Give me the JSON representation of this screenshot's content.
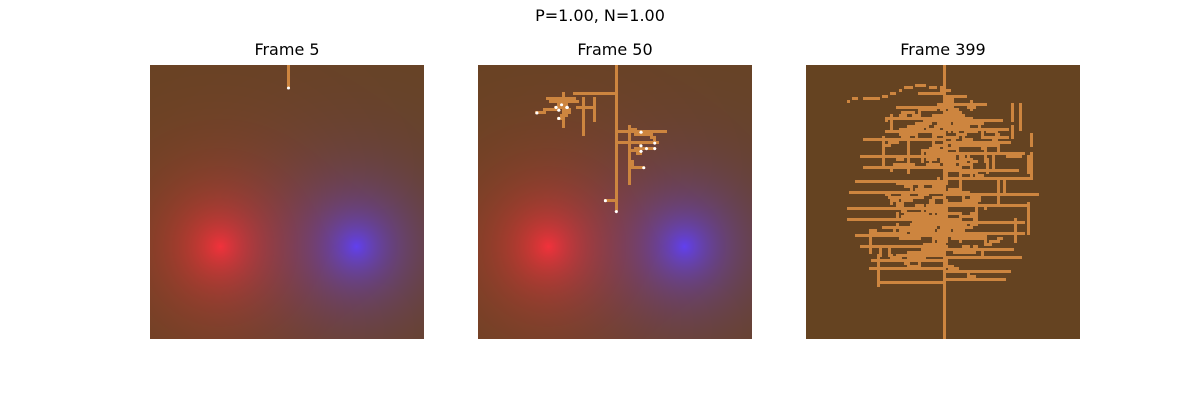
{
  "figure": {
    "suptitle": "P=1.00, N=1.00"
  },
  "panels": [
    {
      "title": "Frame 5",
      "frame": 5,
      "show_sources": true,
      "show_tips": true
    },
    {
      "title": "Frame 50",
      "frame": 50,
      "show_sources": true,
      "show_tips": true
    },
    {
      "title": "Frame 399",
      "frame": 399,
      "show_sources": false,
      "show_tips": false
    }
  ],
  "colors": {
    "soil": "#654321",
    "root": "#cd853f",
    "positive_source": "#ff3030",
    "negative_source": "#6040ff",
    "root_tip": "#ffffff"
  }
}
